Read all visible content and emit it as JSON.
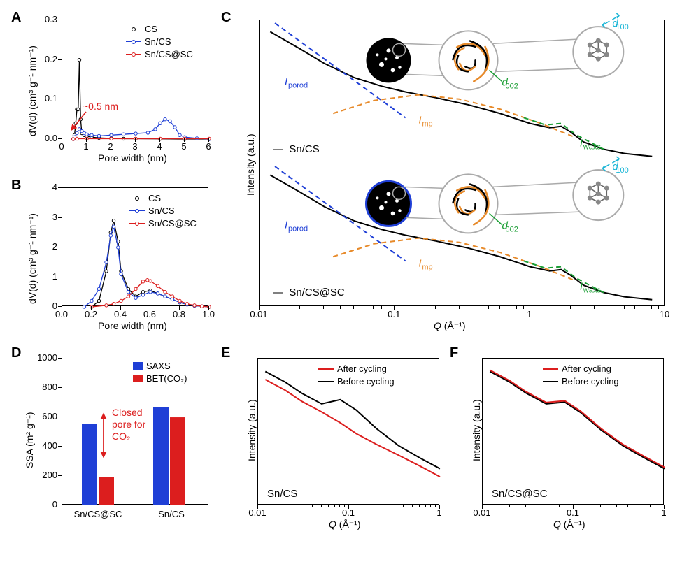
{
  "panels": {
    "A": "A",
    "B": "B",
    "C": "C",
    "D": "D",
    "E": "E",
    "F": "F"
  },
  "colors": {
    "black": "#000000",
    "red": "#dc1e1e",
    "blue": "#1f3fd6",
    "orange": "#e78a2a",
    "green": "#1a9e34",
    "cyan": "#19b5d6",
    "saxsBlue": "#1f3fd6",
    "betRed": "#dc1e1e",
    "gray": "#888888",
    "lightgray": "#cccccc",
    "bg": "#ffffff"
  },
  "panelA": {
    "xlabel": "Pore width (nm)",
    "ylabel": "dV(d) (cm³ g⁻¹ nm⁻¹)",
    "xlim": [
      0,
      6
    ],
    "ylim": [
      0,
      0.3
    ],
    "xticks": [
      0,
      1,
      2,
      3,
      4,
      5,
      6
    ],
    "yticks": [
      0.0,
      0.1,
      0.2,
      0.3
    ],
    "legend": [
      {
        "label": "CS",
        "color": "#000000"
      },
      {
        "label": "Sn/CS",
        "color": "#1f3fd6"
      },
      {
        "label": "Sn/CS@SC",
        "color": "#dc1e1e"
      }
    ],
    "annot": {
      "text": "~0.5 nm",
      "color": "#dc1e1e"
    },
    "series": {
      "CS": [
        [
          0.45,
          0
        ],
        [
          0.5,
          0.01
        ],
        [
          0.55,
          0.04
        ],
        [
          0.6,
          0.075
        ],
        [
          0.65,
          0.075
        ],
        [
          0.7,
          0.2
        ],
        [
          0.75,
          0.05
        ],
        [
          0.8,
          0.015
        ],
        [
          0.9,
          0.01
        ],
        [
          1.0,
          0.007
        ],
        [
          1.2,
          0.005
        ],
        [
          1.5,
          0.003
        ],
        [
          2,
          0.002
        ],
        [
          2.5,
          0.001
        ],
        [
          3,
          0.001
        ],
        [
          4,
          0.0005
        ],
        [
          5,
          0
        ],
        [
          6,
          0
        ]
      ],
      "SnCS": [
        [
          0.45,
          0
        ],
        [
          0.5,
          0.005
        ],
        [
          0.6,
          0.015
        ],
        [
          0.7,
          0.025
        ],
        [
          0.8,
          0.02
        ],
        [
          0.9,
          0.015
        ],
        [
          1.0,
          0.012
        ],
        [
          1.2,
          0.01
        ],
        [
          1.5,
          0.008
        ],
        [
          2,
          0.01
        ],
        [
          2.5,
          0.012
        ],
        [
          3,
          0.014
        ],
        [
          3.5,
          0.016
        ],
        [
          3.8,
          0.025
        ],
        [
          4,
          0.04
        ],
        [
          4.2,
          0.05
        ],
        [
          4.4,
          0.045
        ],
        [
          4.6,
          0.03
        ],
        [
          4.8,
          0.01
        ],
        [
          5,
          0.005
        ],
        [
          5.5,
          0.002
        ],
        [
          6,
          0
        ]
      ],
      "SnCSSC": [
        [
          0.45,
          0
        ],
        [
          0.6,
          0.001
        ],
        [
          1,
          0.001
        ],
        [
          2,
          0.001
        ],
        [
          3,
          0.001
        ],
        [
          4,
          0.001
        ],
        [
          5,
          0.001
        ],
        [
          6,
          0.001
        ]
      ]
    }
  },
  "panelB": {
    "xlabel": "Pore width (nm)",
    "ylabel": "dV(d) (cm³ g⁻¹ nm⁻¹)",
    "xlim": [
      0,
      1
    ],
    "ylim": [
      0,
      4
    ],
    "xticks": [
      0.0,
      0.2,
      0.4,
      0.6,
      0.8,
      1.0
    ],
    "yticks": [
      0,
      1,
      2,
      3,
      4
    ],
    "legend": [
      {
        "label": "CS",
        "color": "#000000"
      },
      {
        "label": "Sn/CS",
        "color": "#1f3fd6"
      },
      {
        "label": "Sn/CS@SC",
        "color": "#dc1e1e"
      }
    ],
    "series": {
      "CS": [
        [
          0.2,
          0
        ],
        [
          0.25,
          0.2
        ],
        [
          0.3,
          1.2
        ],
        [
          0.33,
          2.5
        ],
        [
          0.35,
          2.9
        ],
        [
          0.38,
          2.2
        ],
        [
          0.4,
          1.2
        ],
        [
          0.45,
          0.6
        ],
        [
          0.5,
          0.35
        ],
        [
          0.55,
          0.5
        ],
        [
          0.6,
          0.55
        ],
        [
          0.65,
          0.45
        ],
        [
          0.7,
          0.35
        ],
        [
          0.75,
          0.25
        ],
        [
          0.8,
          0.15
        ],
        [
          0.85,
          0.08
        ],
        [
          0.9,
          0.04
        ],
        [
          0.95,
          0.02
        ],
        [
          1.0,
          0
        ]
      ],
      "SnCS": [
        [
          0.15,
          0
        ],
        [
          0.2,
          0.2
        ],
        [
          0.25,
          0.6
        ],
        [
          0.3,
          1.5
        ],
        [
          0.33,
          2.4
        ],
        [
          0.35,
          2.7
        ],
        [
          0.38,
          2.0
        ],
        [
          0.4,
          1.1
        ],
        [
          0.45,
          0.5
        ],
        [
          0.5,
          0.3
        ],
        [
          0.55,
          0.4
        ],
        [
          0.6,
          0.5
        ],
        [
          0.65,
          0.45
        ],
        [
          0.7,
          0.35
        ],
        [
          0.75,
          0.25
        ],
        [
          0.8,
          0.15
        ],
        [
          0.85,
          0.08
        ],
        [
          0.9,
          0.04
        ],
        [
          0.95,
          0.02
        ],
        [
          1.0,
          0
        ]
      ],
      "SnCSSC": [
        [
          0.2,
          0
        ],
        [
          0.3,
          0.05
        ],
        [
          0.35,
          0.1
        ],
        [
          0.4,
          0.2
        ],
        [
          0.45,
          0.35
        ],
        [
          0.5,
          0.6
        ],
        [
          0.55,
          0.85
        ],
        [
          0.58,
          0.9
        ],
        [
          0.6,
          0.87
        ],
        [
          0.65,
          0.7
        ],
        [
          0.7,
          0.5
        ],
        [
          0.75,
          0.35
        ],
        [
          0.8,
          0.2
        ],
        [
          0.85,
          0.1
        ],
        [
          0.9,
          0.05
        ],
        [
          0.95,
          0.02
        ],
        [
          1.0,
          0
        ]
      ]
    }
  },
  "panelC": {
    "xlabel": "Q (Å⁻¹)",
    "ylabel": "Intensity (a.u.)",
    "xlim": [
      0.01,
      10
    ],
    "xticks": [
      0.01,
      0.1,
      1,
      10
    ],
    "top_label": "Sn/CS",
    "bottom_label": "Sn/CS@SC",
    "annots": {
      "Iporod": {
        "text": "I",
        "sub": "porod",
        "color": "#1f3fd6"
      },
      "Imp": {
        "text": "I",
        "sub": "mp",
        "color": "#e78a2a"
      },
      "Iwaxs": {
        "text": "I",
        "sub": "waxs",
        "color": "#1a9e34"
      },
      "d002": {
        "text": "d",
        "sub": "002",
        "color": "#1a9e34"
      },
      "d100": {
        "text": "d",
        "sub": "100",
        "color": "#19b5d6"
      }
    }
  },
  "panelD": {
    "xlabel_left": "Sn/CS@SC",
    "xlabel_right": "Sn/CS",
    "ylabel": "SSA (m² g⁻¹)",
    "ylim": [
      0,
      1000
    ],
    "yticks": [
      0,
      200,
      400,
      600,
      800,
      1000
    ],
    "legend": [
      {
        "label": "SAXS",
        "color": "#1f3fd6"
      },
      {
        "label": "BET(CO₂)",
        "color": "#dc1e1e"
      }
    ],
    "annot": "Closed\npore for\nCO₂",
    "bars": {
      "SnCSSC": {
        "SAXS": 550,
        "BET": 190
      },
      "SnCS": {
        "SAXS": 665,
        "BET": 595
      }
    }
  },
  "panelEF": {
    "xlabel": "Q (Å⁻¹)",
    "ylabel": "Intensity (a.u.)",
    "xlim": [
      0.01,
      1
    ],
    "xticks": [
      0.01,
      0.1,
      1
    ],
    "legend": [
      {
        "label": "After cycling",
        "color": "#dc1e1e"
      },
      {
        "label": "Before cycling",
        "color": "#000000"
      }
    ],
    "E_label": "Sn/CS",
    "F_label": "Sn/CS@SC"
  }
}
